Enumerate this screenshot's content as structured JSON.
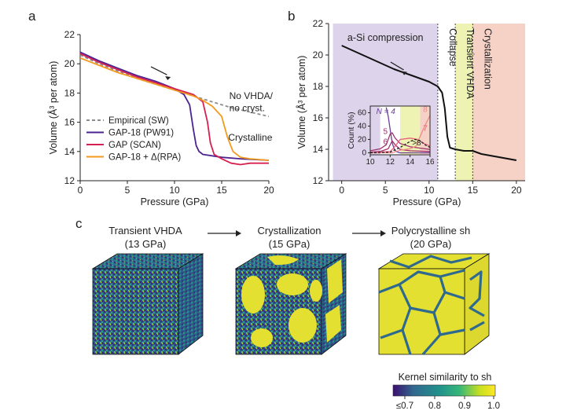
{
  "chart_data": [
    {
      "panel": "a",
      "type": "line",
      "xlabel": "Pressure (GPa)",
      "ylabel": "Volume (Å³ per atom)",
      "xlim": [
        0,
        20
      ],
      "ylim": [
        12,
        22
      ],
      "xticks": [
        0,
        5,
        10,
        15,
        20
      ],
      "yticks": [
        12,
        14,
        16,
        18,
        20,
        22
      ],
      "annotations": [
        "No VHDA/",
        "no cryst.",
        "Crystalline"
      ],
      "legend_position": "lower-left",
      "series": [
        {
          "name": "Empirical (SW)",
          "color": "#8c8c8c",
          "dash": true,
          "x": [
            0,
            2,
            4,
            6,
            8,
            10,
            12,
            14,
            16,
            18,
            20
          ],
          "y": [
            20.6,
            20.0,
            19.5,
            19.0,
            18.6,
            18.2,
            17.8,
            17.4,
            17.0,
            16.7,
            16.4
          ]
        },
        {
          "name": "GAP-18 (PW91)",
          "color": "#4b2390",
          "dash": false,
          "x": [
            0,
            2,
            4,
            6,
            8,
            10,
            11,
            11.6,
            12.0,
            12.3,
            12.6,
            13,
            15,
            17,
            20
          ],
          "y": [
            20.8,
            20.2,
            19.7,
            19.2,
            18.8,
            18.3,
            17.9,
            17.2,
            15.5,
            14.4,
            14.0,
            13.8,
            13.6,
            13.5,
            13.4
          ]
        },
        {
          "name": "GAP (SCAN)",
          "color": "#d62050",
          "dash": false,
          "x": [
            0,
            2,
            4,
            6,
            8,
            10,
            12,
            13,
            13.5,
            13.8,
            14.2,
            15,
            16,
            17,
            18,
            20
          ],
          "y": [
            20.7,
            20.1,
            19.6,
            19.1,
            18.7,
            18.3,
            17.9,
            17.4,
            16.0,
            14.6,
            13.8,
            13.5,
            13.2,
            13.1,
            13.2,
            13.2
          ]
        },
        {
          "name": "GAP-18 + Δ(RPA)",
          "color": "#f39a1e",
          "dash": false,
          "x": [
            0,
            2,
            4,
            6,
            8,
            10,
            12,
            13,
            14,
            15,
            15.6,
            16.2,
            17,
            18,
            20
          ],
          "y": [
            20.4,
            19.9,
            19.4,
            19.0,
            18.6,
            18.2,
            17.8,
            17.5,
            17.1,
            16.4,
            15.0,
            14.0,
            13.6,
            13.5,
            13.4
          ]
        }
      ]
    },
    {
      "panel": "b",
      "type": "line",
      "xlabel": "Pressure (GPa)",
      "ylabel": "Volume (Å³ per atom)",
      "xlim": [
        0,
        20
      ],
      "ylim": [
        12,
        22
      ],
      "xticks": [
        0,
        5,
        10,
        15,
        20
      ],
      "yticks": [
        12,
        14,
        16,
        18,
        20,
        22
      ],
      "regions": [
        {
          "label": "a-Si compression",
          "x": [
            -1,
            11
          ],
          "color": "#ddd3ea"
        },
        {
          "label": "Collapse",
          "x": [
            11,
            13
          ],
          "color": "#ffffff"
        },
        {
          "label": "Transient VHDA",
          "x": [
            13,
            15
          ],
          "color": "#eef2b2"
        },
        {
          "label": "Crystallization",
          "x": [
            15,
            21
          ],
          "color": "#f6d2c6"
        }
      ],
      "series": [
        {
          "name": "",
          "color": "#111111",
          "x": [
            0,
            2,
            4,
            6,
            8,
            10,
            11,
            11.5,
            11.8,
            12.1,
            12.4,
            13,
            14,
            15,
            16,
            18,
            20
          ],
          "y": [
            20.6,
            20.1,
            19.6,
            19.1,
            18.7,
            18.3,
            18.0,
            17.6,
            16.6,
            14.8,
            14.1,
            14.0,
            13.9,
            13.9,
            13.7,
            13.5,
            13.3
          ]
        }
      ],
      "inset": {
        "xlabel": "",
        "ylabel": "Count (%)",
        "xlim": [
          10,
          16
        ],
        "ylim": [
          -3,
          70
        ],
        "xticks": [
          10,
          12,
          14,
          16
        ],
        "yticks": [
          0,
          20,
          40,
          60
        ],
        "label_prefix": "N",
        "series": [
          {
            "name": "4",
            "label": "N = 4",
            "color": "#6a3d9a",
            "x": [
              11.6,
              11.8,
              12.0,
              12.2,
              12.4,
              12.6,
              13,
              14,
              16
            ],
            "y": [
              68,
              55,
              35,
              15,
              6,
              2,
              0,
              0,
              0
            ]
          },
          {
            "name": "5",
            "label": "5",
            "color": "#a0306e",
            "x": [
              10,
              11,
              11.6,
              12.0,
              12.2,
              12.5,
              13,
              14,
              15,
              16
            ],
            "y": [
              3,
              6,
              12,
              28,
              30,
              22,
              14,
              9,
              7,
              5
            ]
          },
          {
            "name": "6",
            "label": "6",
            "color": "#a0306e",
            "x": [
              10,
              11,
              11.8,
              12.2,
              12.5,
              13,
              14,
              16
            ],
            "y": [
              1,
              2,
              6,
              18,
              12,
              5,
              3,
              2
            ]
          },
          {
            "name": "7",
            "label": "7",
            "color": "#e8607a",
            "x": [
              10,
              12,
              12.4,
              13,
              14,
              14.8,
              15.4,
              16
            ],
            "y": [
              0,
              2,
              8,
              20,
              22,
              20,
              14,
              10
            ]
          },
          {
            "name": "8",
            "label": "8",
            "color": "#f08a8a",
            "x": [
              10,
              12.2,
              13,
              14,
              14.6,
              15.1,
              15.6,
              16
            ],
            "y": [
              0,
              0,
              4,
              6,
              10,
              28,
              44,
              56
            ]
          },
          {
            "name": ">8",
            "label": ">8",
            "color": "#222222",
            "dash": true,
            "x": [
              10,
              12,
              13,
              14,
              14.5,
              15,
              15.5,
              16
            ],
            "y": [
              0,
              1,
              8,
              17,
              20,
              18,
              12,
              8
            ]
          }
        ]
      }
    }
  ],
  "panels": {
    "a": {
      "letter": "a"
    },
    "b": {
      "letter": "b"
    },
    "c": {
      "letter": "c",
      "stages": [
        {
          "title": "Transient VHDA",
          "subtitle": "(13 GPa)"
        },
        {
          "title": "Crystallization",
          "subtitle": "(15 GPa)"
        },
        {
          "title": "Polycrystalline sh",
          "subtitle": "(20 GPa)"
        }
      ],
      "colorbar": {
        "title": "Kernel similarity to sh",
        "ticks": [
          "≤0.7",
          "0.8",
          "0.9",
          "1.0"
        ],
        "colors": [
          "#3b0f70",
          "#31688e",
          "#21918c",
          "#35b779",
          "#c8e020",
          "#fde725"
        ]
      },
      "structure_colors": {
        "dark": "#3a2a7a",
        "mid": "#2a8a8a",
        "crystal": "#e4e032"
      }
    }
  }
}
